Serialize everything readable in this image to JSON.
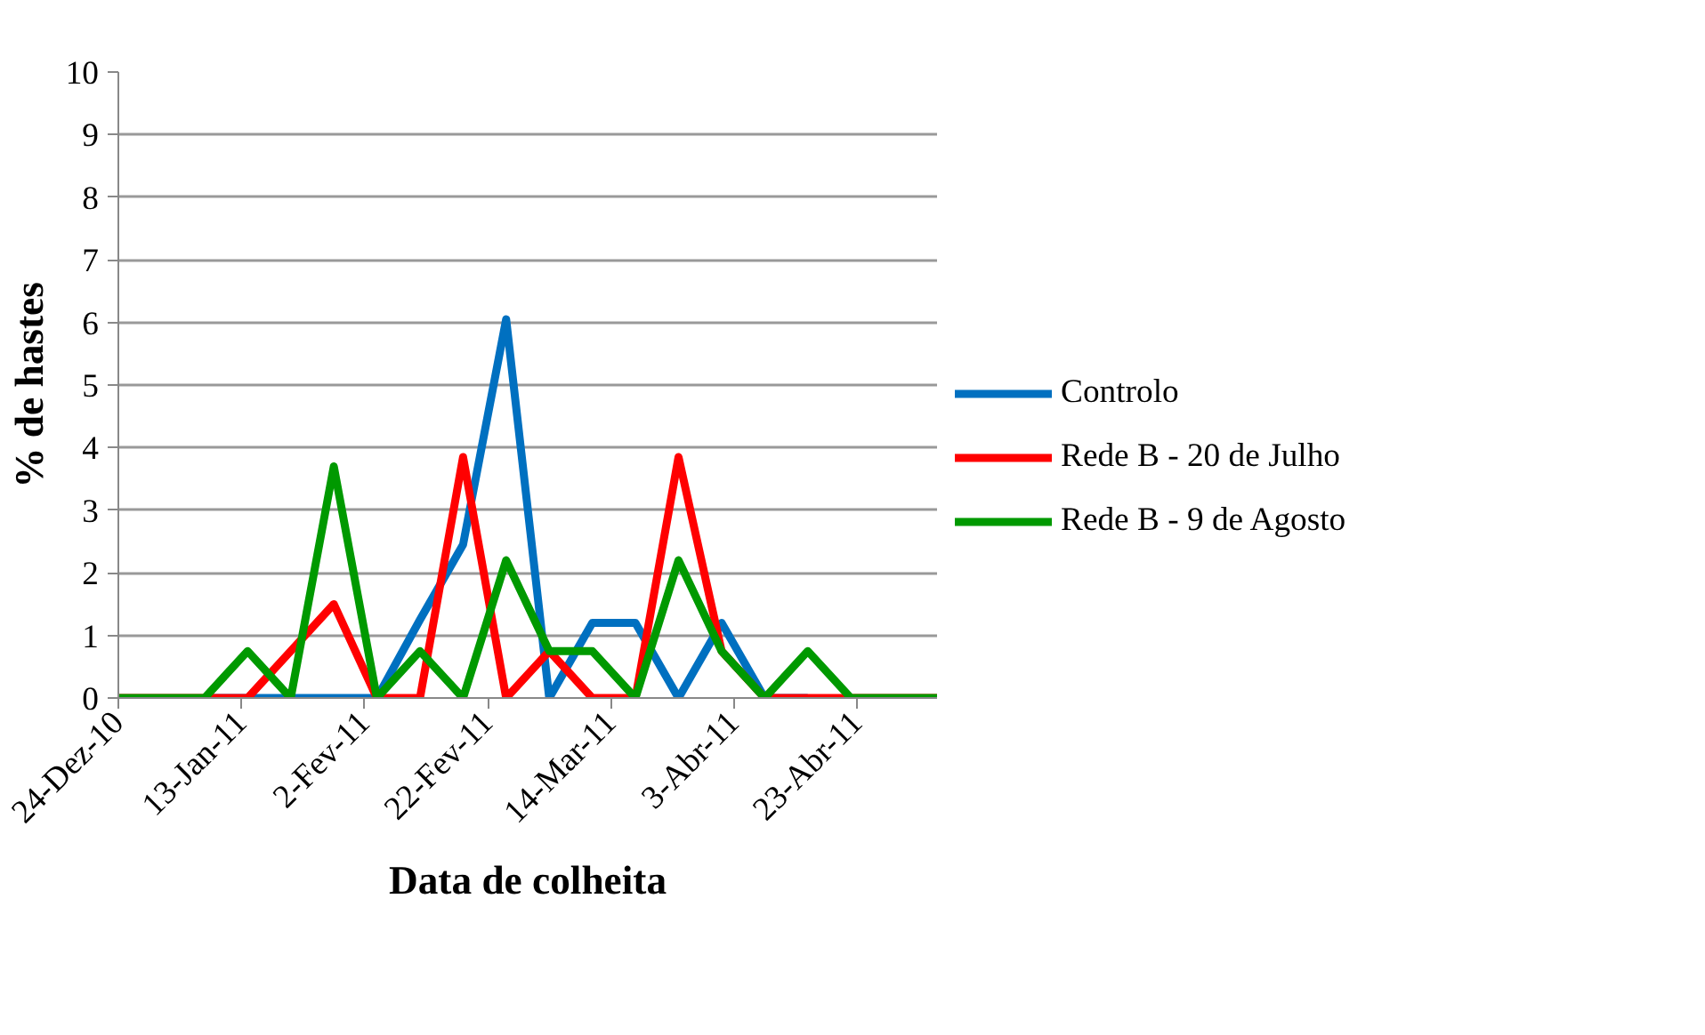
{
  "chart_data": {
    "type": "line",
    "xlabel": "Data de colheita",
    "ylabel": "% de hastes",
    "x": [
      "2010-12-24",
      "2010-12-31",
      "2011-01-07",
      "2011-01-14",
      "2011-01-21",
      "2011-01-28",
      "2011-02-04",
      "2011-02-11",
      "2011-02-18",
      "2011-02-25",
      "2011-03-04",
      "2011-03-11",
      "2011-03-18",
      "2011-03-25",
      "2011-04-01",
      "2011-04-08",
      "2011-04-15",
      "2011-04-22",
      "2011-04-29",
      "2011-05-06"
    ],
    "series": [
      {
        "name": "Controlo",
        "color": "#0070c0",
        "values": [
          null,
          null,
          0,
          0,
          0,
          0,
          0,
          1.25,
          2.45,
          6.05,
          0,
          1.2,
          1.2,
          0,
          1.2,
          0,
          0,
          null,
          null,
          null
        ]
      },
      {
        "name": "Rede B - 20 de Julho",
        "color": "#ff0000",
        "values": [
          0,
          0,
          0,
          0,
          0.75,
          1.5,
          0,
          0,
          3.85,
          0,
          0.75,
          0,
          0,
          3.85,
          0.75,
          0,
          0,
          0,
          0,
          0
        ]
      },
      {
        "name": "Rede B - 9 de Agosto",
        "color": "#009900",
        "values": [
          0,
          0,
          0,
          0.75,
          0,
          3.7,
          0,
          0.75,
          0,
          2.2,
          0.75,
          0.75,
          0,
          2.2,
          0.75,
          0,
          0.75,
          0,
          0,
          0
        ]
      }
    ],
    "xlim": [
      "2010-12-24",
      "2011-05-06"
    ],
    "xticks": [
      {
        "value": "2010-12-24",
        "label": "24-Dez-10"
      },
      {
        "value": "2011-01-13",
        "label": "13-Jan-11"
      },
      {
        "value": "2011-02-02",
        "label": "2-Fev-11"
      },
      {
        "value": "2011-02-22",
        "label": "22-Fev-11"
      },
      {
        "value": "2011-03-14",
        "label": "14-Mar-11"
      },
      {
        "value": "2011-04-03",
        "label": "3-Abr-11"
      },
      {
        "value": "2011-04-23",
        "label": "23-Abr-11"
      }
    ],
    "ylim": [
      0,
      10
    ],
    "yticks": [
      0,
      1,
      2,
      3,
      4,
      5,
      6,
      7,
      8,
      9,
      10
    ],
    "grid": "y",
    "legend": "right",
    "marker": "none",
    "line_style": "solid"
  }
}
